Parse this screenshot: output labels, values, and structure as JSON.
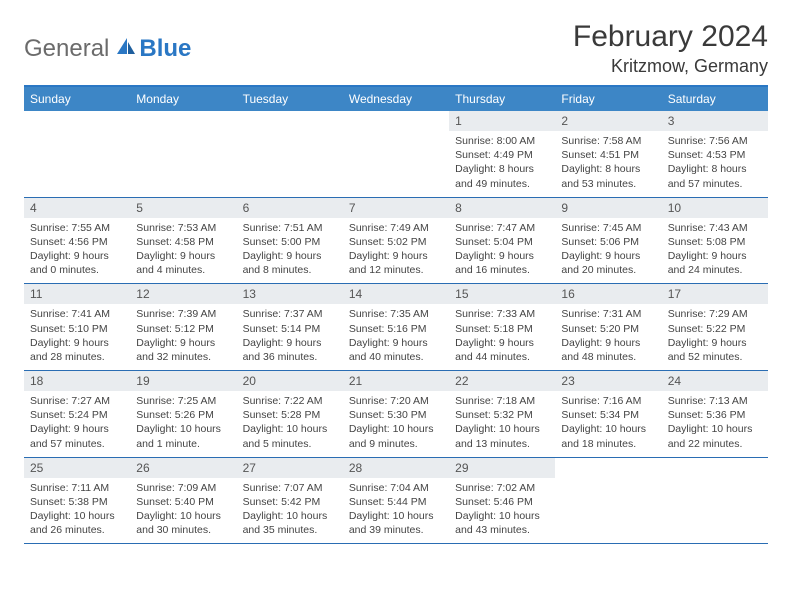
{
  "brand": {
    "general": "General",
    "blue": "Blue"
  },
  "header": {
    "month_title": "February 2024",
    "location": "Kritzmow, Germany"
  },
  "weekdays": [
    "Sunday",
    "Monday",
    "Tuesday",
    "Wednesday",
    "Thursday",
    "Friday",
    "Saturday"
  ],
  "colors": {
    "header_bg": "#3d86c6",
    "border": "#2a6db3",
    "daynum_bg": "#e9ecef"
  },
  "weeks": [
    [
      {
        "empty": true
      },
      {
        "empty": true
      },
      {
        "empty": true
      },
      {
        "empty": true
      },
      {
        "num": "1",
        "sunrise": "Sunrise: 8:00 AM",
        "sunset": "Sunset: 4:49 PM",
        "daylight1": "Daylight: 8 hours",
        "daylight2": "and 49 minutes."
      },
      {
        "num": "2",
        "sunrise": "Sunrise: 7:58 AM",
        "sunset": "Sunset: 4:51 PM",
        "daylight1": "Daylight: 8 hours",
        "daylight2": "and 53 minutes."
      },
      {
        "num": "3",
        "sunrise": "Sunrise: 7:56 AM",
        "sunset": "Sunset: 4:53 PM",
        "daylight1": "Daylight: 8 hours",
        "daylight2": "and 57 minutes."
      }
    ],
    [
      {
        "num": "4",
        "sunrise": "Sunrise: 7:55 AM",
        "sunset": "Sunset: 4:56 PM",
        "daylight1": "Daylight: 9 hours",
        "daylight2": "and 0 minutes."
      },
      {
        "num": "5",
        "sunrise": "Sunrise: 7:53 AM",
        "sunset": "Sunset: 4:58 PM",
        "daylight1": "Daylight: 9 hours",
        "daylight2": "and 4 minutes."
      },
      {
        "num": "6",
        "sunrise": "Sunrise: 7:51 AM",
        "sunset": "Sunset: 5:00 PM",
        "daylight1": "Daylight: 9 hours",
        "daylight2": "and 8 minutes."
      },
      {
        "num": "7",
        "sunrise": "Sunrise: 7:49 AM",
        "sunset": "Sunset: 5:02 PM",
        "daylight1": "Daylight: 9 hours",
        "daylight2": "and 12 minutes."
      },
      {
        "num": "8",
        "sunrise": "Sunrise: 7:47 AM",
        "sunset": "Sunset: 5:04 PM",
        "daylight1": "Daylight: 9 hours",
        "daylight2": "and 16 minutes."
      },
      {
        "num": "9",
        "sunrise": "Sunrise: 7:45 AM",
        "sunset": "Sunset: 5:06 PM",
        "daylight1": "Daylight: 9 hours",
        "daylight2": "and 20 minutes."
      },
      {
        "num": "10",
        "sunrise": "Sunrise: 7:43 AM",
        "sunset": "Sunset: 5:08 PM",
        "daylight1": "Daylight: 9 hours",
        "daylight2": "and 24 minutes."
      }
    ],
    [
      {
        "num": "11",
        "sunrise": "Sunrise: 7:41 AM",
        "sunset": "Sunset: 5:10 PM",
        "daylight1": "Daylight: 9 hours",
        "daylight2": "and 28 minutes."
      },
      {
        "num": "12",
        "sunrise": "Sunrise: 7:39 AM",
        "sunset": "Sunset: 5:12 PM",
        "daylight1": "Daylight: 9 hours",
        "daylight2": "and 32 minutes."
      },
      {
        "num": "13",
        "sunrise": "Sunrise: 7:37 AM",
        "sunset": "Sunset: 5:14 PM",
        "daylight1": "Daylight: 9 hours",
        "daylight2": "and 36 minutes."
      },
      {
        "num": "14",
        "sunrise": "Sunrise: 7:35 AM",
        "sunset": "Sunset: 5:16 PM",
        "daylight1": "Daylight: 9 hours",
        "daylight2": "and 40 minutes."
      },
      {
        "num": "15",
        "sunrise": "Sunrise: 7:33 AM",
        "sunset": "Sunset: 5:18 PM",
        "daylight1": "Daylight: 9 hours",
        "daylight2": "and 44 minutes."
      },
      {
        "num": "16",
        "sunrise": "Sunrise: 7:31 AM",
        "sunset": "Sunset: 5:20 PM",
        "daylight1": "Daylight: 9 hours",
        "daylight2": "and 48 minutes."
      },
      {
        "num": "17",
        "sunrise": "Sunrise: 7:29 AM",
        "sunset": "Sunset: 5:22 PM",
        "daylight1": "Daylight: 9 hours",
        "daylight2": "and 52 minutes."
      }
    ],
    [
      {
        "num": "18",
        "sunrise": "Sunrise: 7:27 AM",
        "sunset": "Sunset: 5:24 PM",
        "daylight1": "Daylight: 9 hours",
        "daylight2": "and 57 minutes."
      },
      {
        "num": "19",
        "sunrise": "Sunrise: 7:25 AM",
        "sunset": "Sunset: 5:26 PM",
        "daylight1": "Daylight: 10 hours",
        "daylight2": "and 1 minute."
      },
      {
        "num": "20",
        "sunrise": "Sunrise: 7:22 AM",
        "sunset": "Sunset: 5:28 PM",
        "daylight1": "Daylight: 10 hours",
        "daylight2": "and 5 minutes."
      },
      {
        "num": "21",
        "sunrise": "Sunrise: 7:20 AM",
        "sunset": "Sunset: 5:30 PM",
        "daylight1": "Daylight: 10 hours",
        "daylight2": "and 9 minutes."
      },
      {
        "num": "22",
        "sunrise": "Sunrise: 7:18 AM",
        "sunset": "Sunset: 5:32 PM",
        "daylight1": "Daylight: 10 hours",
        "daylight2": "and 13 minutes."
      },
      {
        "num": "23",
        "sunrise": "Sunrise: 7:16 AM",
        "sunset": "Sunset: 5:34 PM",
        "daylight1": "Daylight: 10 hours",
        "daylight2": "and 18 minutes."
      },
      {
        "num": "24",
        "sunrise": "Sunrise: 7:13 AM",
        "sunset": "Sunset: 5:36 PM",
        "daylight1": "Daylight: 10 hours",
        "daylight2": "and 22 minutes."
      }
    ],
    [
      {
        "num": "25",
        "sunrise": "Sunrise: 7:11 AM",
        "sunset": "Sunset: 5:38 PM",
        "daylight1": "Daylight: 10 hours",
        "daylight2": "and 26 minutes."
      },
      {
        "num": "26",
        "sunrise": "Sunrise: 7:09 AM",
        "sunset": "Sunset: 5:40 PM",
        "daylight1": "Daylight: 10 hours",
        "daylight2": "and 30 minutes."
      },
      {
        "num": "27",
        "sunrise": "Sunrise: 7:07 AM",
        "sunset": "Sunset: 5:42 PM",
        "daylight1": "Daylight: 10 hours",
        "daylight2": "and 35 minutes."
      },
      {
        "num": "28",
        "sunrise": "Sunrise: 7:04 AM",
        "sunset": "Sunset: 5:44 PM",
        "daylight1": "Daylight: 10 hours",
        "daylight2": "and 39 minutes."
      },
      {
        "num": "29",
        "sunrise": "Sunrise: 7:02 AM",
        "sunset": "Sunset: 5:46 PM",
        "daylight1": "Daylight: 10 hours",
        "daylight2": "and 43 minutes."
      },
      {
        "empty": true
      },
      {
        "empty": true
      }
    ]
  ]
}
